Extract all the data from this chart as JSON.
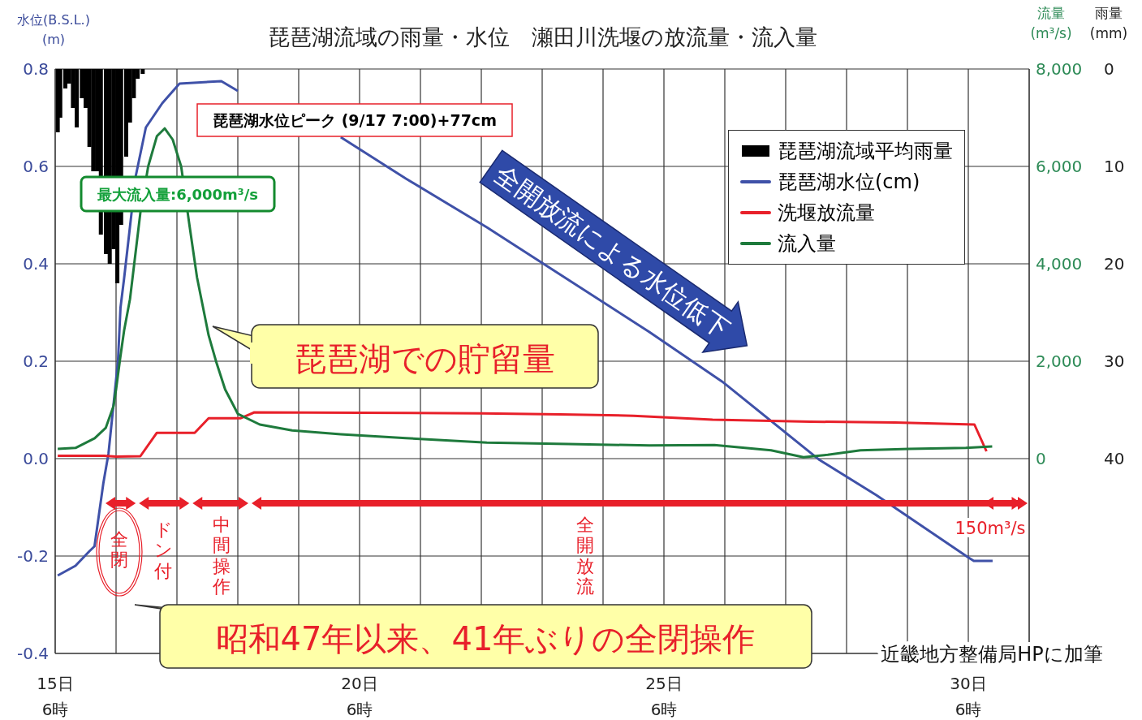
{
  "chart_data": {
    "type": "line",
    "title": "琵琶湖流域の雨量・水位　瀬田川洗堰の放流量・流入量",
    "ylabel": "水位(B.S.L.)\n(m)",
    "y2label": "流量\n(m³/s)",
    "y3label": "雨量\n(mm)",
    "xlim": [
      "--09-15T06:00",
      "--10-01T06:00"
    ],
    "xticks": [
      {
        "value": "--09-15T06:00",
        "label": "15日\n6時"
      },
      {
        "value": "--09-16T06:00",
        "label": null
      },
      {
        "value": "--09-17T06:00",
        "label": null
      },
      {
        "value": "--09-18T06:00",
        "label": null
      },
      {
        "value": "--09-19T06:00",
        "label": null
      },
      {
        "value": "--09-20T06:00",
        "label": "20日\n6時"
      },
      {
        "value": "--09-21T06:00",
        "label": null
      },
      {
        "value": "--09-22T06:00",
        "label": null
      },
      {
        "value": "--09-23T06:00",
        "label": null
      },
      {
        "value": "--09-24T06:00",
        "label": null
      },
      {
        "value": "--09-25T06:00",
        "label": "25日\n6時"
      },
      {
        "value": "--09-26T06:00",
        "label": null
      },
      {
        "value": "--09-27T06:00",
        "label": null
      },
      {
        "value": "--09-28T06:00",
        "label": null
      },
      {
        "value": "--09-29T06:00",
        "label": null
      },
      {
        "value": "--09-30T06:00",
        "label": "30日\n6時"
      }
    ],
    "ylim": [
      -0.4,
      0.8
    ],
    "yticks": [
      -0.4,
      -0.2,
      {
        "value": 0,
        "label": "0.0"
      },
      0.2,
      0.4,
      0.6,
      0.8
    ],
    "y2lim": [
      -4000,
      8000
    ],
    "y2ticks": [
      0,
      {
        "value": 2000,
        "label": "2,000"
      },
      {
        "value": 4000,
        "label": "4,000"
      },
      {
        "value": 6000,
        "label": "6,000"
      },
      {
        "value": 8000,
        "label": "8,000"
      }
    ],
    "y3lim": [
      60,
      0
    ],
    "y3ticks": [
      0,
      10,
      20,
      30,
      40
    ],
    "grid": true,
    "legend": "top right",
    "marker": "none",
    "line_style": "solid",
    "series": [
      {
        "name": "琵琶湖流域平均雨量",
        "type": "bar",
        "axis": "y3",
        "color": "#000000",
        "x": [
          "--09-15T07:00",
          "--09-15T08:00",
          "--09-15T10:00",
          "--09-15T11:30",
          "--09-15T13:00",
          "--09-15T14:30",
          "--09-15T16:30",
          "--09-15T18:00",
          "--09-15T19:30",
          "--09-15T21:00",
          "--09-15T22:30",
          "--09-16T00:00",
          "--09-16T02:00",
          "--09-16T03:30",
          "--09-16T05:00",
          "--09-16T06:30",
          "--09-16T08:00",
          "--09-16T10:00",
          "--09-16T11:30",
          "--09-16T13:00",
          "--09-16T14:30",
          "--09-16T16:30"
        ],
        "values": [
          6.5,
          5,
          2,
          1.5,
          4,
          6,
          3,
          4,
          8,
          10.5,
          10.5,
          17,
          19,
          20,
          18.5,
          22,
          16,
          9,
          5.5,
          3,
          1,
          0.5
        ]
      },
      {
        "name": "琵琶湖水位(cm)",
        "color": "#3f51a8",
        "x": [
          "--09-15T07:00",
          "--09-15T14:00",
          "--09-15T19:30",
          "--09-15T21:30",
          "--09-16T01:00",
          "--09-16T03:00",
          "--09-16T06:45",
          "--09-16T07:45",
          "--09-16T09:10",
          "--09-16T13:45",
          "--09-16T17:45",
          "--09-17T00:15",
          "--09-17T07:00",
          "--09-17T23:30",
          "--09-18T06:00",
          "--09-19T00:15",
          "--09-19T22:35",
          "--09-21T00:15",
          "--09-22T08:10",
          "--09-23T16:20",
          "--09-25T00:15",
          "--09-26T05:00",
          "--09-27T19:25",
          "--09-28T17:45",
          "--09-30T06:00",
          "--09-30T08:10",
          "--09-30T15:35"
        ],
        "values": [
          -0.24,
          -0.22,
          -0.19,
          -0.18,
          -0.05,
          0.01,
          0.2,
          0.31,
          0.37,
          0.58,
          0.68,
          0.73,
          0.77,
          0.775,
          0.755,
          null,
          0.66,
          0.575,
          0.475,
          0.367,
          0.26,
          0.158,
          -0.003,
          -0.075,
          -0.203,
          -0.21,
          -0.21
        ]
      },
      {
        "name": "洗堰放流量",
        "axis": "y2",
        "color": "#e8202a",
        "x": [
          "--09-15T07:00",
          "--09-16T01:10",
          "--09-16T06:00",
          "--09-16T15:35",
          "--09-16T22:05",
          "--09-17T13:00",
          "--09-17T18:30",
          "--09-18T07:10",
          "--09-18T12:30",
          "--09-20T06:00",
          "--09-22T06:00",
          "--09-23T13:10",
          "--09-24T18:00",
          "--09-26T01:10",
          "--09-27T15:35",
          "--09-29T01:10",
          "--09-30T08:25",
          "--09-30T13:10"
        ],
        "values": [
          60,
          60,
          40,
          50,
          530,
          530,
          830,
          830,
          950,
          940,
          930,
          910,
          880,
          800,
          760,
          740,
          700,
          150
        ]
      },
      {
        "name": "流入量",
        "axis": "y2",
        "color": "#1e7a3c",
        "x": [
          "--09-15T07:00",
          "--09-15T14:00",
          "--09-15T21:35",
          "--09-16T01:55",
          "--09-16T05:00",
          "--09-16T06:00",
          "--09-16T07:40",
          "--09-16T09:10",
          "--09-16T11:30",
          "--09-16T15:35",
          "--09-16T18:40",
          "--09-16T22:05",
          "--09-17T01:10",
          "--09-17T04:20",
          "--09-17T07:40",
          "--09-17T10:50",
          "--09-17T13:55",
          "--09-17T18:30",
          "--09-17T21:35",
          "--09-18T01:00",
          "--09-18T06:00",
          "--09-18T14:40",
          "--09-19T03:25",
          "--09-19T22:35",
          "--09-21T00:15",
          "--09-22T08:10",
          "--09-23T16:20",
          "--09-25T00:15",
          "--09-26T01:55",
          "--09-27T00:15",
          "--09-27T13:00",
          "--09-27T22:35",
          "--09-28T11:30",
          "--09-29T06:40",
          "--09-30T05:00",
          "--09-30T15:25"
        ],
        "values": [
          200,
          220,
          420,
          630,
          1080,
          1420,
          2080,
          2630,
          3280,
          5050,
          6000,
          6620,
          6780,
          6550,
          6000,
          4830,
          3720,
          2530,
          1970,
          1420,
          920,
          700,
          580,
          500,
          420,
          330,
          300,
          270,
          280,
          170,
          30,
          80,
          170,
          200,
          220,
          250
        ]
      }
    ],
    "annotations": [
      "琵琶湖水位ピーク (9/17 7:00)+77cm",
      "最大流入量:6,000m³/s",
      "琵琶湖での貯留量",
      "全開放流による水位低下",
      "全閉",
      "ドン付",
      "中間操作",
      "全開放流",
      "150m³/s",
      "昭和47年以来、41年ぶりの全閉操作",
      "近畿地方整備局HPに加筆"
    ]
  }
}
